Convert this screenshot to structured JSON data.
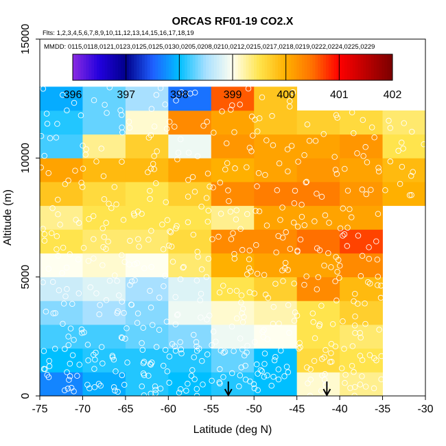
{
  "chart_data": {
    "type": "heatmap",
    "title": "ORCAS RF01-19 CO2.X",
    "subtitle_flights": "Flts: 1,2,3,4,5,6,7,8,9,10,11,12,13,14,15,16,17,18,19",
    "subtitle_dates": "MMDD: 0115,0118,0121,0123,0125,0125,0130,0205,0208,0210,0212,0215,0217,0218,0219,0222,0224,0225,0229",
    "xlabel": "Latitude (deg N)",
    "ylabel": "Altitude (m)",
    "xlim": [
      -75,
      -30
    ],
    "ylim": [
      0,
      15000
    ],
    "x_ticks": [
      -75,
      -70,
      -65,
      -60,
      -55,
      -50,
      -45,
      -40,
      -35,
      -30
    ],
    "y_ticks": [
      0,
      5000,
      10000,
      15000
    ],
    "colorbar": {
      "min": 396,
      "max": 402,
      "ticks": [
        396,
        397,
        398,
        399,
        400,
        401,
        402
      ],
      "stops": [
        {
          "v": 396.0,
          "c": "#8A2BE2"
        },
        {
          "v": 396.5,
          "c": "#2200DD"
        },
        {
          "v": 397.0,
          "c": "#00008B"
        },
        {
          "v": 397.5,
          "c": "#1F5FFF"
        },
        {
          "v": 398.0,
          "c": "#00BFFF"
        },
        {
          "v": 398.5,
          "c": "#A8E0FF"
        },
        {
          "v": 399.0,
          "c": "#FFFFF0"
        },
        {
          "v": 399.5,
          "c": "#FFE44D"
        },
        {
          "v": 400.0,
          "c": "#FFB000"
        },
        {
          "v": 400.5,
          "c": "#FF7000"
        },
        {
          "v": 401.0,
          "c": "#FF0000"
        },
        {
          "v": 402.0,
          "c": "#7A0000"
        }
      ]
    },
    "cell_lat_edges": [
      -75,
      -70,
      -65,
      -60,
      -55,
      -50,
      -45,
      -40,
      -35,
      -30
    ],
    "cell_alt_step": 1000,
    "cells": [
      [
        397.7,
        397.9,
        398.1,
        398.0,
        398.1,
        398.0,
        399.1,
        399.3,
        null
      ],
      [
        398.0,
        398.1,
        398.1,
        398.1,
        398.3,
        398.0,
        399.6,
        399.5,
        null
      ],
      [
        398.2,
        398.2,
        398.3,
        398.4,
        398.9,
        399.0,
        399.5,
        399.4,
        null
      ],
      [
        398.4,
        398.5,
        398.4,
        398.9,
        399.1,
        399.2,
        399.5,
        399.7,
        null
      ],
      [
        398.7,
        398.8,
        398.5,
        398.8,
        399.5,
        399.7,
        400.3,
        399.9,
        null
      ],
      [
        399.0,
        399.1,
        399.0,
        399.4,
        400.0,
        400.1,
        400.1,
        400.3,
        null
      ],
      [
        399.5,
        399.4,
        399.4,
        399.6,
        400.3,
        400.3,
        400.5,
        400.7,
        null
      ],
      [
        399.3,
        399.5,
        399.5,
        399.5,
        399.3,
        400.1,
        400.1,
        400.1,
        null
      ],
      [
        399.8,
        399.6,
        399.5,
        399.7,
        400.3,
        400.4,
        400.4,
        400.2,
        400.0
      ],
      [
        400.1,
        399.9,
        399.9,
        400.1,
        400.0,
        400.1,
        400.2,
        400.1,
        399.9
      ],
      [
        398.2,
        399.3,
        399.7,
        398.9,
        400.2,
        400.1,
        400.1,
        400.2,
        399.5
      ],
      [
        398.1,
        398.3,
        399.1,
        400.3,
        400.1,
        399.8,
        399.7,
        399.6,
        399.4
      ],
      [
        397.9,
        398.3,
        398.5,
        397.6,
        400.6,
        399.8,
        null,
        null,
        null
      ]
    ],
    "arrow_latitudes": [
      -53,
      -41.5
    ]
  }
}
